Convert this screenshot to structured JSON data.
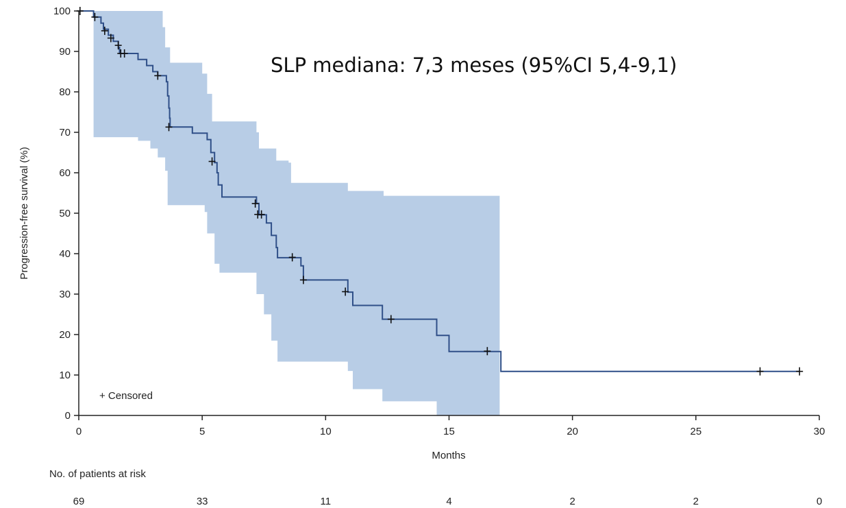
{
  "chart_data": {
    "type": "line",
    "title": "",
    "annotation": "SLP mediana: 7,3 meses (95%CI 5,4-9,1)",
    "xlabel": "Months",
    "ylabel": "Progression-free survival (%)",
    "xlim": [
      0,
      30
    ],
    "ylim": [
      0,
      100
    ],
    "x_ticks": [
      0,
      5,
      10,
      15,
      20,
      25,
      30
    ],
    "y_ticks": [
      0,
      10,
      20,
      30,
      40,
      50,
      60,
      70,
      80,
      90,
      100
    ],
    "grid": false,
    "line_color": "#2f4f88",
    "band_color": "#b8cde6",
    "censor_color": "#111111",
    "legend": {
      "label": "+ Censored",
      "placement": "bottom-left"
    },
    "series": [
      {
        "name": "",
        "steps": [
          [
            0,
            100
          ],
          [
            0.6,
            98.5
          ],
          [
            0.9,
            97
          ],
          [
            1.0,
            95.5
          ],
          [
            1.2,
            94
          ],
          [
            1.4,
            92.5
          ],
          [
            1.6,
            91
          ],
          [
            1.65,
            89.5
          ],
          [
            2.4,
            88
          ],
          [
            2.75,
            86.5
          ],
          [
            3.0,
            85
          ],
          [
            3.2,
            84
          ],
          [
            3.55,
            82.5
          ],
          [
            3.6,
            79
          ],
          [
            3.65,
            76
          ],
          [
            3.68,
            73.5
          ],
          [
            3.7,
            71.3
          ],
          [
            4.6,
            69.8
          ],
          [
            5.2,
            68.2
          ],
          [
            5.35,
            65
          ],
          [
            5.5,
            62.5
          ],
          [
            5.6,
            60
          ],
          [
            5.65,
            57
          ],
          [
            5.8,
            54
          ],
          [
            7.0,
            54
          ],
          [
            7.2,
            52.4
          ],
          [
            7.3,
            49.6
          ],
          [
            7.6,
            47.6
          ],
          [
            7.8,
            44.5
          ],
          [
            8.0,
            41.5
          ],
          [
            8.05,
            39
          ],
          [
            9.0,
            37
          ],
          [
            9.1,
            33.5
          ],
          [
            10.9,
            30.5
          ],
          [
            11.1,
            27.2
          ],
          [
            12.3,
            23.8
          ],
          [
            14.5,
            19.8
          ],
          [
            15.0,
            15.8
          ],
          [
            17.1,
            10.9
          ],
          [
            29.2,
            10.9
          ]
        ],
        "censored": [
          [
            0.05,
            100
          ],
          [
            0.65,
            98.5
          ],
          [
            1.05,
            95.1
          ],
          [
            1.3,
            93.3
          ],
          [
            1.6,
            91.5
          ],
          [
            1.7,
            89.5
          ],
          [
            1.85,
            89.5
          ],
          [
            3.2,
            84
          ],
          [
            3.65,
            71.3
          ],
          [
            5.4,
            62.8
          ],
          [
            7.15,
            52.4
          ],
          [
            7.25,
            49.7
          ],
          [
            7.4,
            49.7
          ],
          [
            8.65,
            39.1
          ],
          [
            9.1,
            33.5
          ],
          [
            10.8,
            30.6
          ],
          [
            12.65,
            23.8
          ],
          [
            16.55,
            15.9
          ],
          [
            27.6,
            10.9
          ],
          [
            29.2,
            10.9
          ]
        ],
        "ci_upper": [
          [
            0,
            100
          ],
          [
            3.4,
            96
          ],
          [
            3.5,
            91
          ],
          [
            3.7,
            87.2
          ],
          [
            5.0,
            84.5
          ],
          [
            5.2,
            79.5
          ],
          [
            5.4,
            72.7
          ],
          [
            7.0,
            72.7
          ],
          [
            7.2,
            70
          ],
          [
            7.3,
            66
          ],
          [
            8.0,
            63
          ],
          [
            8.5,
            62.5
          ],
          [
            8.6,
            57.5
          ],
          [
            10.8,
            57.5
          ],
          [
            10.9,
            55.5
          ],
          [
            12.3,
            55.5
          ],
          [
            12.35,
            54.3
          ],
          [
            17.05,
            54.3
          ]
        ],
        "ci_lower": [
          [
            0.6,
            68.8
          ],
          [
            2.4,
            67.9
          ],
          [
            2.9,
            66
          ],
          [
            3.2,
            63.8
          ],
          [
            3.5,
            60.5
          ],
          [
            3.6,
            52
          ],
          [
            5.1,
            50.3
          ],
          [
            5.2,
            45
          ],
          [
            5.5,
            37.5
          ],
          [
            5.7,
            35.3
          ],
          [
            6.9,
            35.3
          ],
          [
            7.2,
            30
          ],
          [
            7.5,
            25
          ],
          [
            7.8,
            18.5
          ],
          [
            8.05,
            13.3
          ],
          [
            10.9,
            11
          ],
          [
            11.1,
            6.5
          ],
          [
            12.3,
            3.5
          ],
          [
            14.5,
            0
          ],
          [
            17.05,
            0
          ]
        ]
      }
    ]
  },
  "risk_table": {
    "title": "No. of patients at risk",
    "values": [
      "69",
      "33",
      "11",
      "4",
      "2",
      "2",
      "0"
    ]
  }
}
